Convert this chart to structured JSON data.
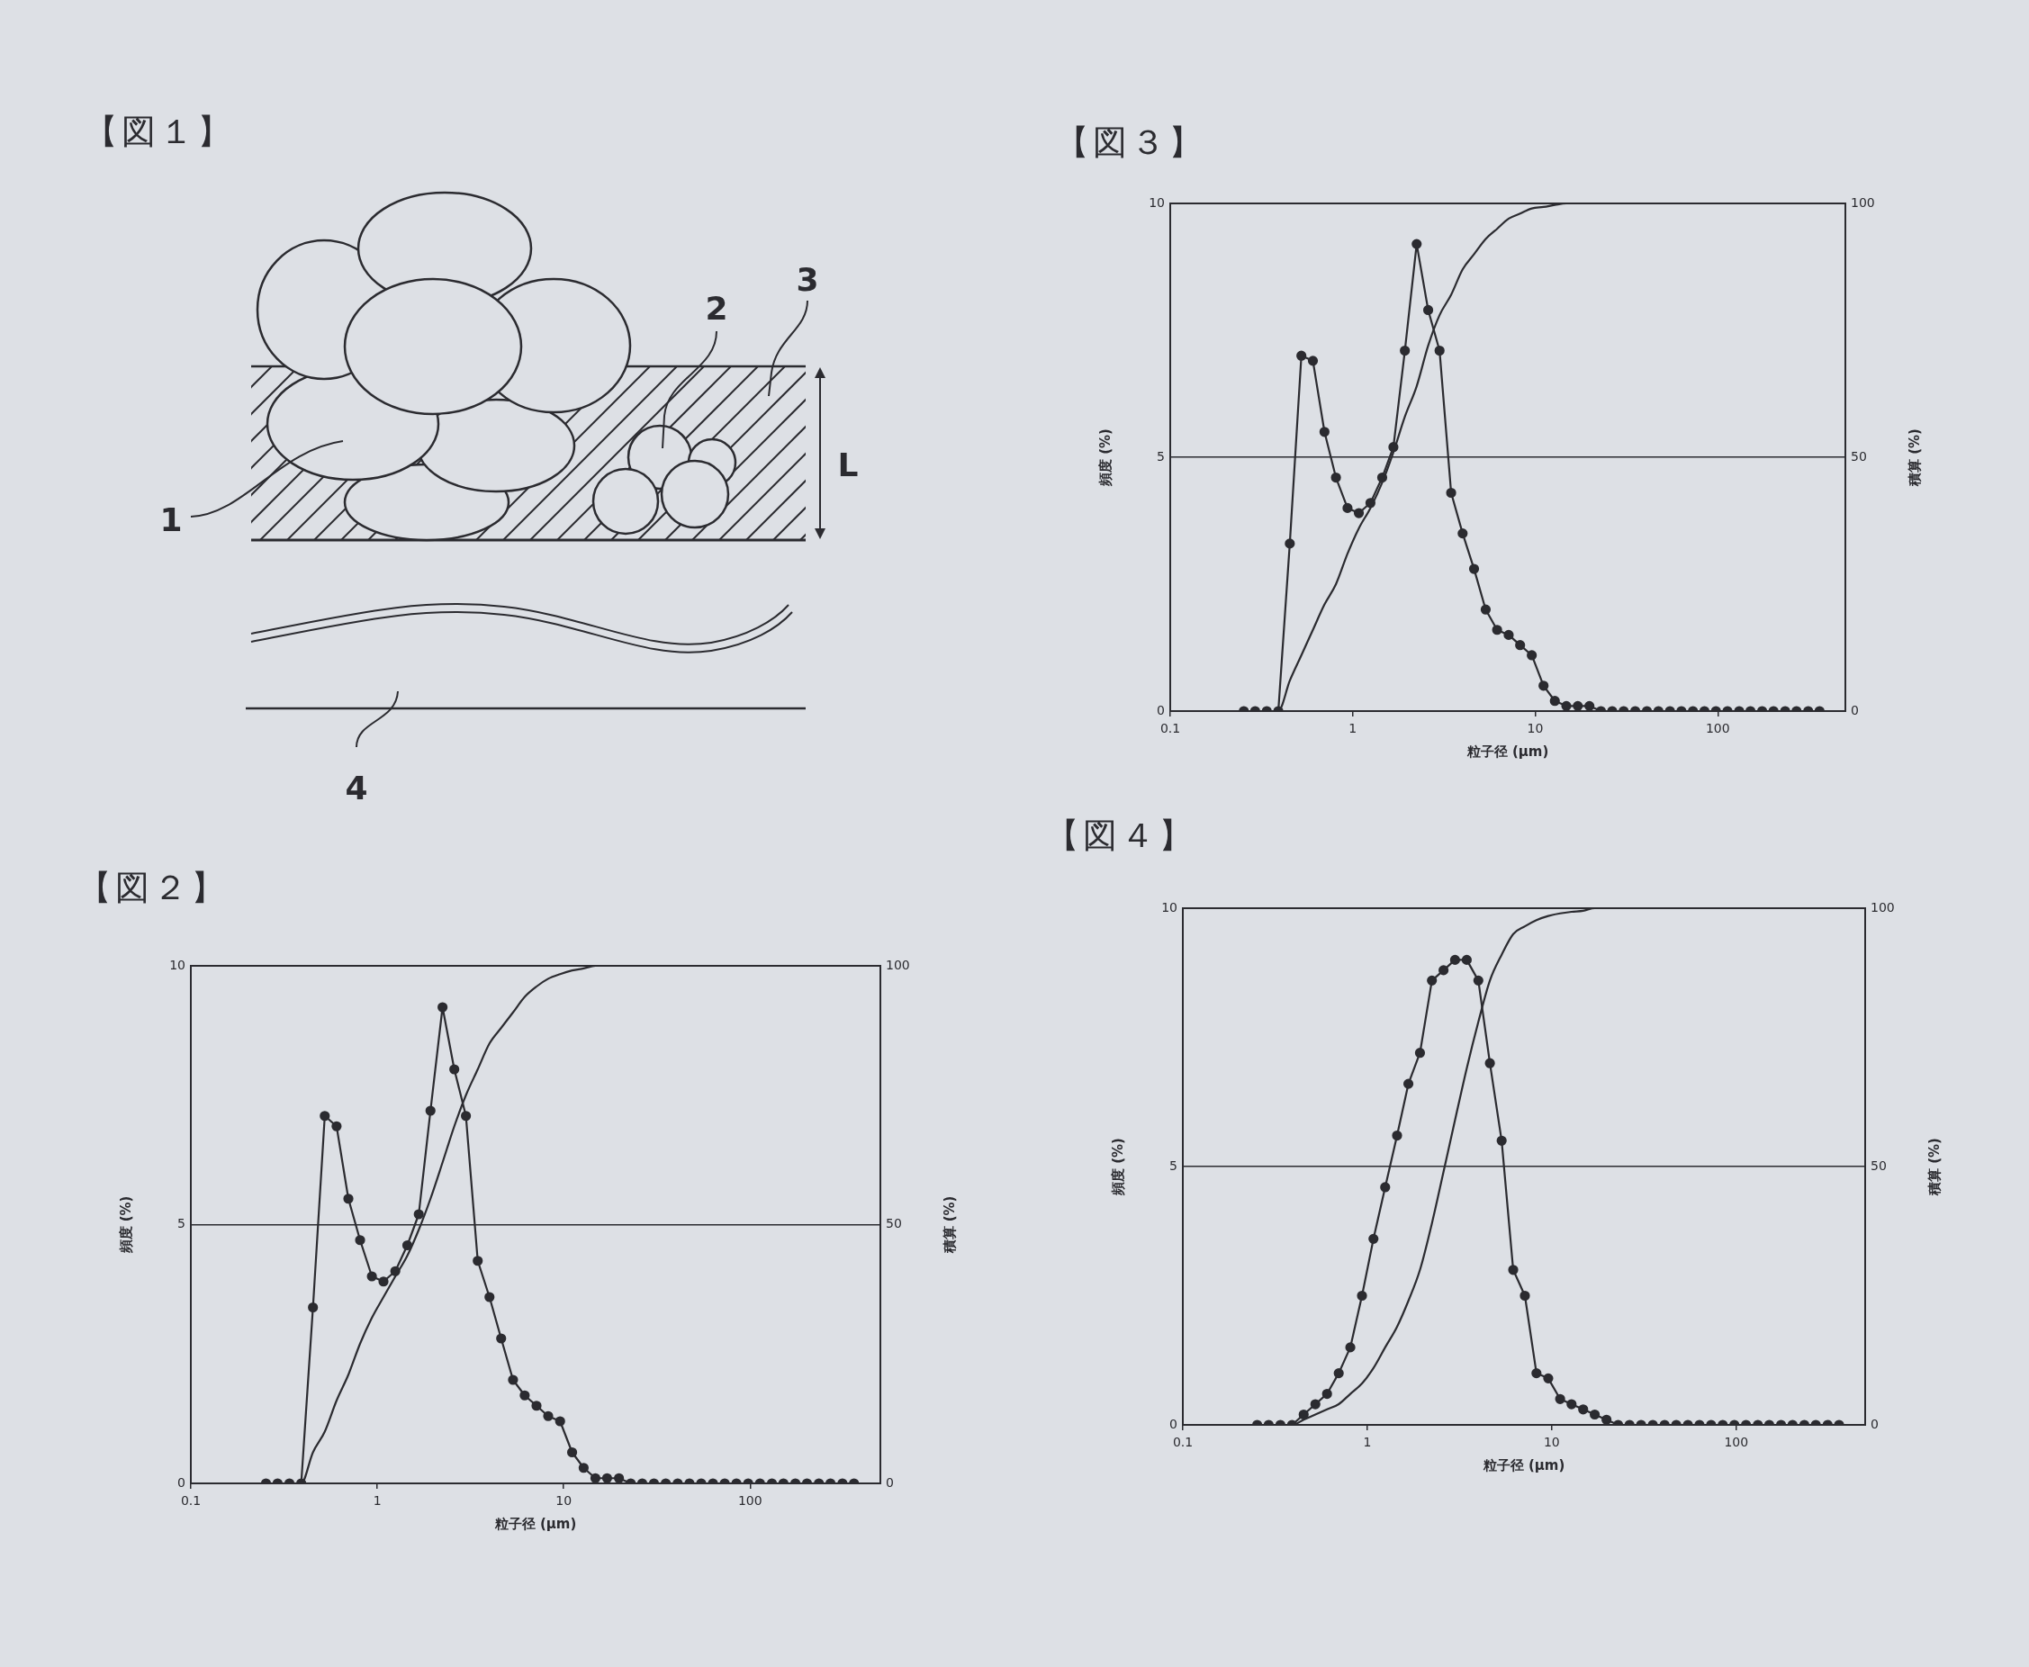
{
  "chart_data": [
    {
      "type": "other",
      "title": "【図１】",
      "annotations": [
        "1",
        "2",
        "3",
        "4",
        "L"
      ]
    },
    {
      "type": "line",
      "title": "【図３】",
      "xlabel": "粒子径 (μm)",
      "ylabel": "頻度 (%)",
      "y2label": "積算 (%)",
      "log": "x",
      "xlim": [
        0.1,
        500
      ],
      "xticks": [
        0.1,
        1,
        10,
        100
      ],
      "ylim": [
        0,
        10
      ],
      "yticks": [
        0,
        5,
        10
      ],
      "y2lim": [
        0,
        100
      ],
      "y2ticks": [
        0,
        50,
        100
      ],
      "grid": "y",
      "marker": "circle",
      "x": [
        0.253,
        0.292,
        0.338,
        0.391,
        0.452,
        0.523,
        0.605,
        0.7,
        0.809,
        0.936,
        1.08,
        1.25,
        1.45,
        1.67,
        1.93,
        2.24,
        2.59,
        2.99,
        3.46,
        4.0,
        4.62,
        5.35,
        6.18,
        7.15,
        8.26,
        9.57,
        11.1,
        12.8,
        14.8,
        17.1,
        19.8,
        22.9,
        26.4,
        30.5,
        35.3,
        40.9,
        47.3,
        54.7,
        63.2,
        73.1,
        84.5,
        97.7,
        113,
        131,
        151,
        175,
        202,
        234,
        270,
        313,
        361
      ],
      "series": [
        {
          "color": "#2b2b30",
          "values": [
            0,
            0,
            0,
            0,
            3.3,
            7.0,
            6.9,
            5.5,
            4.6,
            4.0,
            3.9,
            4.1,
            4.6,
            5.2,
            7.1,
            9.2,
            7.9,
            7.1,
            4.3,
            3.5,
            2.8,
            2.0,
            1.6,
            1.5,
            1.3,
            1.1,
            0.5,
            0.2,
            0.1,
            0.1,
            0.1,
            0,
            0,
            0,
            0,
            0,
            0,
            0,
            0,
            0,
            0,
            0,
            0,
            0,
            0,
            0,
            0,
            0,
            0,
            0,
            0
          ]
        },
        {
          "color": "#2b2b30",
          "axis": "y2",
          "marker": "none",
          "values": [
            0,
            0,
            0,
            0,
            6,
            11,
            16,
            21,
            25,
            31,
            36,
            40,
            45,
            51,
            58,
            64,
            72,
            78,
            82,
            87,
            90,
            93,
            95,
            97,
            98,
            99,
            99.3,
            99.7,
            100,
            100,
            100,
            100,
            100,
            100,
            100,
            100,
            100,
            100,
            100,
            100,
            100,
            100,
            100,
            100,
            100,
            100,
            100,
            100,
            100,
            100,
            100
          ]
        }
      ]
    },
    {
      "type": "line",
      "title": "【図２】",
      "xlabel": "粒子径 (μm)",
      "ylabel": "頻度 (%)",
      "y2label": "積算 (%)",
      "log": "x",
      "xlim": [
        0.1,
        500
      ],
      "xticks": [
        0.1,
        1,
        10,
        100
      ],
      "ylim": [
        0,
        10
      ],
      "yticks": [
        0,
        5,
        10
      ],
      "y2lim": [
        0,
        100
      ],
      "y2ticks": [
        0,
        50,
        100
      ],
      "grid": "y",
      "marker": "circle",
      "x": [
        0.253,
        0.292,
        0.338,
        0.391,
        0.452,
        0.523,
        0.605,
        0.7,
        0.809,
        0.936,
        1.08,
        1.25,
        1.45,
        1.67,
        1.93,
        2.24,
        2.59,
        2.99,
        3.46,
        4.0,
        4.62,
        5.35,
        6.18,
        7.15,
        8.26,
        9.57,
        11.1,
        12.8,
        14.8,
        17.1,
        19.8,
        22.9,
        26.4,
        30.5,
        35.3,
        40.9,
        47.3,
        54.7,
        63.2,
        73.1,
        84.5,
        97.7,
        113,
        131,
        151,
        175,
        202,
        234,
        270,
        313,
        361
      ],
      "series": [
        {
          "color": "#2b2b30",
          "values": [
            0,
            0,
            0,
            0,
            3.4,
            7.1,
            6.9,
            5.5,
            4.7,
            4.0,
            3.9,
            4.1,
            4.6,
            5.2,
            7.2,
            9.2,
            8.0,
            7.1,
            4.3,
            3.6,
            2.8,
            2.0,
            1.7,
            1.5,
            1.3,
            1.2,
            0.6,
            0.3,
            0.1,
            0.1,
            0.1,
            0,
            0,
            0,
            0,
            0,
            0,
            0,
            0,
            0,
            0,
            0,
            0,
            0,
            0,
            0,
            0,
            0,
            0,
            0,
            0
          ]
        },
        {
          "color": "#2b2b30",
          "axis": "y2",
          "marker": "none",
          "values": [
            0,
            0,
            0,
            0,
            6,
            10,
            16,
            21,
            27,
            32,
            36,
            40,
            44,
            49,
            55,
            62,
            69,
            75,
            80,
            85,
            88,
            91,
            94,
            96,
            97.5,
            98.4,
            99.1,
            99.5,
            100,
            100,
            100,
            100,
            100,
            100,
            100,
            100,
            100,
            100,
            100,
            100,
            100,
            100,
            100,
            100,
            100,
            100,
            100,
            100,
            100,
            100,
            100
          ]
        }
      ]
    },
    {
      "type": "line",
      "title": "【図４】",
      "xlabel": "粒子径 (μm)",
      "ylabel": "頻度 (%)",
      "y2label": "積算 (%)",
      "log": "x",
      "xlim": [
        0.1,
        500
      ],
      "xticks": [
        0.1,
        1,
        10,
        100
      ],
      "ylim": [
        0,
        10
      ],
      "yticks": [
        0,
        5,
        10
      ],
      "y2lim": [
        0,
        100
      ],
      "y2ticks": [
        0,
        50,
        100
      ],
      "grid": "y",
      "marker": "circle",
      "x": [
        0.253,
        0.292,
        0.338,
        0.391,
        0.452,
        0.523,
        0.605,
        0.7,
        0.809,
        0.936,
        1.08,
        1.25,
        1.45,
        1.67,
        1.93,
        2.24,
        2.59,
        2.99,
        3.46,
        4.0,
        4.62,
        5.35,
        6.18,
        7.15,
        8.26,
        9.57,
        11.1,
        12.8,
        14.8,
        17.1,
        19.8,
        22.9,
        26.4,
        30.5,
        35.3,
        40.9,
        47.3,
        54.7,
        63.2,
        73.1,
        84.5,
        97.7,
        113,
        131,
        151,
        175,
        202,
        234,
        270,
        313,
        361
      ],
      "series": [
        {
          "color": "#2b2b30",
          "values": [
            0,
            0,
            0,
            0,
            0.2,
            0.4,
            0.6,
            1.0,
            1.5,
            2.5,
            3.6,
            4.6,
            5.6,
            6.6,
            7.2,
            8.6,
            8.8,
            9.0,
            9.0,
            8.6,
            7.0,
            5.5,
            3.0,
            2.5,
            1.0,
            0.9,
            0.5,
            0.4,
            0.3,
            0.2,
            0.1,
            0,
            0,
            0,
            0,
            0,
            0,
            0,
            0,
            0,
            0,
            0,
            0,
            0,
            0,
            0,
            0,
            0,
            0,
            0,
            0
          ]
        },
        {
          "color": "#2b2b30",
          "axis": "y2",
          "marker": "none",
          "values": [
            0,
            0,
            0,
            0,
            1,
            2,
            3,
            4,
            6,
            8,
            11,
            15,
            19,
            24,
            30,
            39,
            49,
            59,
            69,
            78,
            86,
            91,
            95,
            96.5,
            97.7,
            98.5,
            99,
            99.3,
            99.5,
            100,
            100,
            100,
            100,
            100,
            100,
            100,
            100,
            100,
            100,
            100,
            100,
            100,
            100,
            100,
            100,
            100,
            100,
            100,
            100,
            100,
            100
          ]
        }
      ]
    }
  ]
}
